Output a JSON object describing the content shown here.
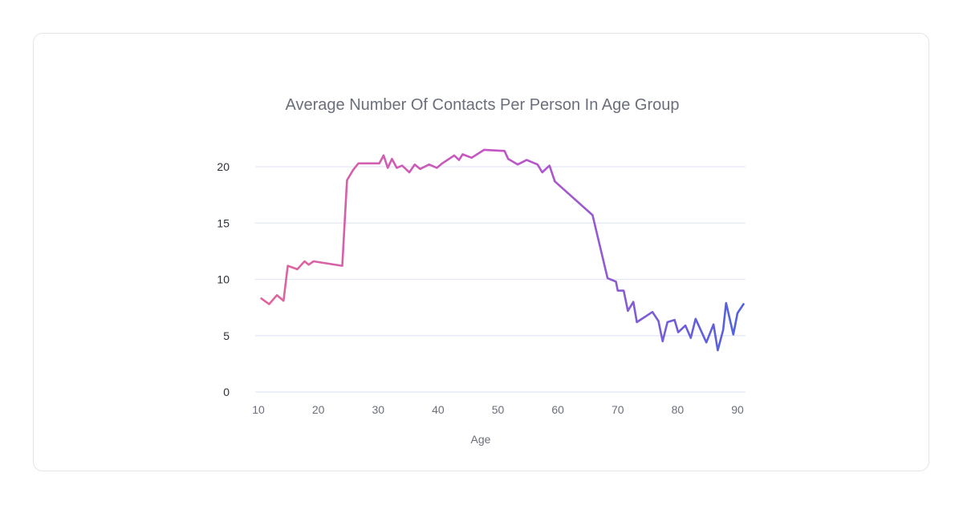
{
  "chart_data": {
    "type": "line",
    "title": "Average Number Of Contacts Per Person In Age Group",
    "xlabel": "Age",
    "ylabel": "",
    "xlim": [
      10,
      91
    ],
    "ylim": [
      0,
      22
    ],
    "xticks": [
      "10",
      "20",
      "30",
      "40",
      "50",
      "60",
      "70",
      "80",
      "90"
    ],
    "yticks": [
      "0",
      "5",
      "10",
      "15",
      "20"
    ],
    "grid": true,
    "gradient_colors": [
      "#e0679a",
      "#c254c6",
      "#4f62e0"
    ],
    "series": [
      {
        "x": [
          10.5,
          11.8,
          13.1,
          14.2,
          14.9,
          16.5,
          17.7,
          18.4,
          19.2,
          24.0,
          24.8,
          25.8,
          26.7,
          30.2,
          30.9,
          31.6,
          32.3,
          33.1,
          34.0,
          35.2,
          36.1,
          37.0,
          38.5,
          39.8,
          40.7,
          42.7,
          43.5,
          44.1,
          45.6,
          47.7,
          51.1,
          51.7,
          53.3,
          54.8,
          56.6,
          57.4,
          58.6,
          59.5,
          65.8,
          68.3,
          69.7,
          70.0,
          71.0,
          71.7,
          72.6,
          73.2,
          75.8,
          76.8,
          77.5,
          78.3,
          79.5,
          80.1,
          81.3,
          82.2,
          83.0,
          84.8,
          86.0,
          86.7,
          87.6,
          88.1,
          89.3,
          90.0,
          91.0
        ],
        "values": [
          8.3,
          7.8,
          8.6,
          8.1,
          11.2,
          10.9,
          11.6,
          11.3,
          11.6,
          11.2,
          18.8,
          19.7,
          20.3,
          20.3,
          21.0,
          19.9,
          20.7,
          19.9,
          20.1,
          19.5,
          20.2,
          19.8,
          20.2,
          19.9,
          20.3,
          21.0,
          20.6,
          21.1,
          20.8,
          21.5,
          21.4,
          20.7,
          20.2,
          20.6,
          20.2,
          19.5,
          20.1,
          18.7,
          15.7,
          10.1,
          9.8,
          9.0,
          9.0,
          7.2,
          8.0,
          6.2,
          7.1,
          6.3,
          4.5,
          6.2,
          6.4,
          5.3,
          5.9,
          4.8,
          6.5,
          4.4,
          6.0,
          3.7,
          5.5,
          7.9,
          5.1,
          7.0,
          7.8
        ]
      }
    ]
  }
}
